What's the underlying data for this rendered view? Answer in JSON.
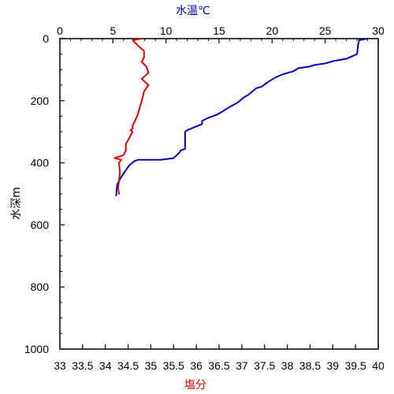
{
  "chart_data": {
    "type": "line",
    "colors": {
      "temperature": "#0000c0",
      "salinity": "#e00000",
      "axis": "#000000"
    },
    "top_axis": {
      "label": "水温℃",
      "range": [
        0,
        30
      ],
      "ticks": [
        0,
        5,
        10,
        15,
        20,
        25,
        30
      ],
      "tick_labels": [
        "0",
        "5",
        "10",
        "15",
        "20",
        "25",
        "30"
      ]
    },
    "bottom_axis": {
      "label": "塩分",
      "range": [
        33,
        40
      ],
      "ticks": [
        33,
        33.5,
        34,
        34.5,
        35,
        35.5,
        36,
        36.5,
        37,
        37.5,
        38,
        38.5,
        39,
        39.5,
        40
      ],
      "tick_labels": [
        "33",
        "33.5",
        "34",
        "34.5",
        "35",
        "35.5",
        "36",
        "36.5",
        "37",
        "37.5",
        "38",
        "38.5",
        "39",
        "39.5",
        "40"
      ]
    },
    "left_axis": {
      "label": "水深m",
      "range": [
        0,
        1000
      ],
      "inverted": true,
      "ticks": [
        0,
        200,
        400,
        600,
        800,
        1000
      ],
      "tick_labels": [
        "0",
        "200",
        "400",
        "600",
        "800",
        "1000"
      ]
    },
    "grid": false,
    "series": [
      {
        "key": "temperature",
        "axis": "top",
        "x": [
          29.0,
          28.2,
          28.1,
          28.0,
          27.0,
          25.8,
          25.0,
          24.0,
          23.5,
          22.5,
          22.0,
          21.0,
          20.3,
          19.6,
          19.0,
          18.5,
          17.8,
          17.3,
          16.8,
          16.0,
          15.3,
          14.8,
          14.0,
          13.4,
          13.4,
          12.0,
          11.8,
          11.8,
          11.4,
          11.2,
          10.7,
          9.5,
          7.4,
          7.0,
          6.5,
          6.1,
          5.7,
          5.4,
          5.3
        ],
        "y": [
          0,
          5,
          20,
          50,
          65,
          72,
          80,
          85,
          90,
          95,
          105,
          115,
          125,
          140,
          155,
          160,
          180,
          190,
          205,
          220,
          235,
          245,
          255,
          265,
          275,
          295,
          300,
          355,
          360,
          370,
          385,
          390,
          390,
          395,
          410,
          430,
          450,
          470,
          505
        ],
        "values": [
          29.0,
          28.2,
          28.1,
          28.0,
          27.0,
          25.8,
          25.0,
          24.0,
          23.5,
          22.5,
          22.0,
          21.0,
          20.3,
          19.6,
          19.0,
          18.5,
          17.8,
          17.3,
          16.8,
          16.0,
          15.3,
          14.8,
          14.0,
          13.4,
          13.4,
          12.0,
          11.8,
          11.8,
          11.4,
          11.2,
          10.7,
          9.5,
          7.4,
          7.0,
          6.5,
          6.1,
          5.7,
          5.4,
          5.3
        ]
      },
      {
        "key": "salinity",
        "axis": "bottom",
        "x": [
          34.8,
          34.6,
          34.7,
          34.85,
          34.85,
          34.8,
          34.9,
          34.95,
          34.8,
          34.95,
          34.85,
          34.8,
          34.75,
          34.7,
          34.65,
          34.6,
          34.6,
          34.55,
          34.6,
          34.45,
          34.45,
          34.4,
          34.2,
          34.35,
          34.3,
          34.32,
          34.3,
          34.28,
          34.3
        ],
        "y": [
          0,
          5,
          20,
          40,
          60,
          75,
          90,
          110,
          130,
          150,
          170,
          200,
          225,
          250,
          265,
          280,
          290,
          295,
          300,
          340,
          360,
          375,
          385,
          390,
          400,
          430,
          460,
          480,
          500
        ],
        "values": [
          34.8,
          34.6,
          34.7,
          34.85,
          34.85,
          34.8,
          34.9,
          34.95,
          34.8,
          34.95,
          34.85,
          34.8,
          34.75,
          34.7,
          34.65,
          34.6,
          34.6,
          34.55,
          34.6,
          34.45,
          34.45,
          34.4,
          34.2,
          34.35,
          34.3,
          34.32,
          34.3,
          34.28,
          34.3
        ]
      }
    ]
  }
}
